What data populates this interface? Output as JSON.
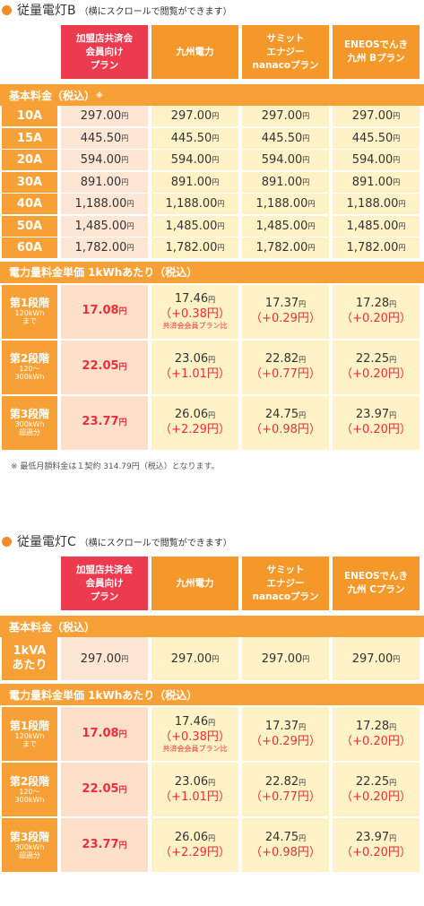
{
  "sectionB": {
    "title": "従量電灯B",
    "title_note": "（横にスクロールで閲覧ができます）",
    "plans": [
      "加盟店共済会\n会員向け\nプラン",
      "九州電力",
      "サミット\nエナジー\nnanacoプラン",
      "ENEOSでんき\n九州 Bプラン"
    ],
    "base_label": "基本料金（税込）",
    "base_mark": "※",
    "base_rows": [
      {
        "label": "10A",
        "values": [
          "297.00",
          "297.00",
          "297.00",
          "297.00"
        ]
      },
      {
        "label": "15A",
        "values": [
          "445.50",
          "445.50",
          "445.50",
          "445.50"
        ]
      },
      {
        "label": "20A",
        "values": [
          "594.00",
          "594.00",
          "594.00",
          "594.00"
        ]
      },
      {
        "label": "30A",
        "values": [
          "891.00",
          "891.00",
          "891.00",
          "891.00"
        ]
      },
      {
        "label": "40A",
        "values": [
          "1,188.00",
          "1,188.00",
          "1,188.00",
          "1,188.00"
        ]
      },
      {
        "label": "50A",
        "values": [
          "1,485.00",
          "1,485.00",
          "1,485.00",
          "1,485.00"
        ]
      },
      {
        "label": "60A",
        "values": [
          "1,782.00",
          "1,782.00",
          "1,782.00",
          "1,782.00"
        ]
      }
    ],
    "unit_label": "電力量料金単価 1kWhあたり（税込）",
    "unit_rows": [
      {
        "label": "第1段階",
        "sub": "120kWh\nまで",
        "main": "17.08",
        "cells": [
          {
            "v": "17.46",
            "d": "（+0.38円）",
            "n": "共済会会員プラン比"
          },
          {
            "v": "17.37",
            "d": "（+0.29円）"
          },
          {
            "v": "17.28",
            "d": "（+0.20円）"
          }
        ]
      },
      {
        "label": "第2段階",
        "sub": "120〜\n300kWh",
        "main": "22.05",
        "cells": [
          {
            "v": "23.06",
            "d": "（+1.01円）"
          },
          {
            "v": "22.82",
            "d": "（+0.77円）"
          },
          {
            "v": "22.25",
            "d": "（+0.20円）"
          }
        ]
      },
      {
        "label": "第3段階",
        "sub": "300kWh\n超過分",
        "main": "23.77",
        "cells": [
          {
            "v": "26.06",
            "d": "（+2.29円）"
          },
          {
            "v": "24.75",
            "d": "（+0.98円）"
          },
          {
            "v": "23.97",
            "d": "（+0.20円）"
          }
        ]
      }
    ],
    "footnote": "※ 最低月額料金は１契約 314.79円（税込）となります。"
  },
  "sectionC": {
    "title": "従量電灯C",
    "title_note": "（横にスクロールで閲覧ができます）",
    "plans": [
      "加盟店共済会\n会員向け\nプラン",
      "九州電力",
      "サミット\nエナジー\nnanacoプラン",
      "ENEOSでんき\n九州 Cプラン"
    ],
    "base_label": "基本料金（税込）",
    "base_rows": [
      {
        "label": "1kVA\nあたり",
        "values": [
          "297.00",
          "297.00",
          "297.00",
          "297.00"
        ]
      }
    ],
    "unit_label": "電力量料金単価 1kWhあたり（税込）",
    "unit_rows": [
      {
        "label": "第1段階",
        "sub": "120kWh\nまで",
        "main": "17.08",
        "cells": [
          {
            "v": "17.46",
            "d": "（+0.38円）",
            "n": "共済会会員プラン比"
          },
          {
            "v": "17.37",
            "d": "（+0.29円）"
          },
          {
            "v": "17.28",
            "d": "（+0.20円）"
          }
        ]
      },
      {
        "label": "第2段階",
        "sub": "120〜\n300kWh",
        "main": "22.05",
        "cells": [
          {
            "v": "23.06",
            "d": "（+1.01円）"
          },
          {
            "v": "22.82",
            "d": "（+0.77円）"
          },
          {
            "v": "22.25",
            "d": "（+0.20円）"
          }
        ]
      },
      {
        "label": "第3段階",
        "sub": "300kWh\n超過分",
        "main": "23.77",
        "cells": [
          {
            "v": "26.06",
            "d": "（+2.29円）"
          },
          {
            "v": "24.75",
            "d": "（+0.98円）"
          },
          {
            "v": "23.97",
            "d": "（+0.20円）"
          }
        ]
      }
    ]
  },
  "yen_symbol": "円"
}
